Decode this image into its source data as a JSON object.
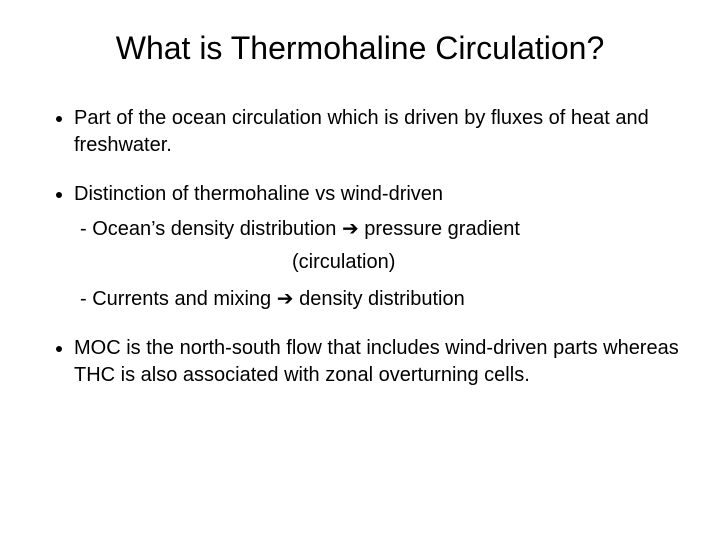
{
  "slide": {
    "background_color": "#ffffff",
    "text_color": "#000000",
    "title": "What is Thermohaline Circulation?",
    "title_fontsize": 32,
    "body_fontsize": 20,
    "font_family": "Arial",
    "arrow_glyph": "➔",
    "bullets": {
      "b1": "Part of the ocean circulation which is driven by fluxes of heat and freshwater.",
      "b2": "Distinction of thermohaline vs wind-driven",
      "b2_sub1_a": "- Ocean’s density distribution ",
      "b2_sub1_b": " pressure gradient",
      "b2_sub1_cont": "(circulation)",
      "b2_sub2_a": "- Currents and mixing ",
      "b2_sub2_b": " density distribution",
      "b3": "MOC is the north-south flow that includes wind-driven parts whereas THC is also associated with zonal overturning cells."
    }
  }
}
